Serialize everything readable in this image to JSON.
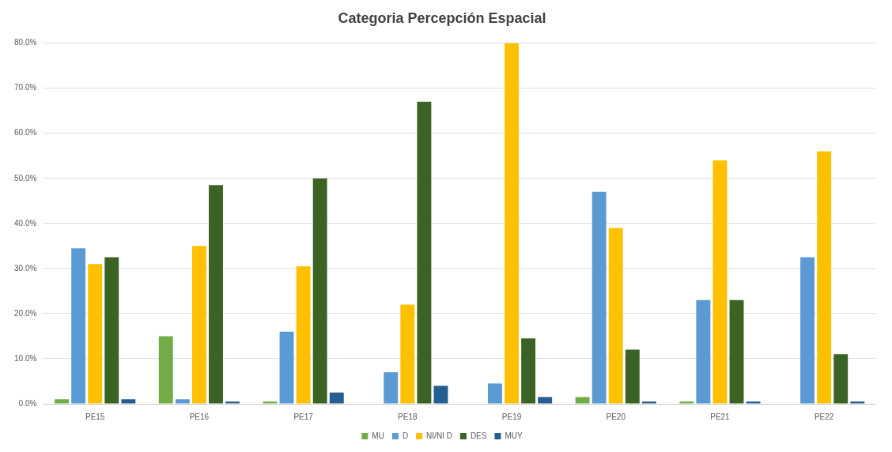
{
  "chart_data": {
    "type": "bar",
    "title": "Categoria Percepción Espacial",
    "categories": [
      "PE15",
      "PE16",
      "PE17",
      "PE18",
      "PE19",
      "PE20",
      "PE21",
      "PE22"
    ],
    "series": [
      {
        "name": "MU",
        "color": "#70ad47",
        "values": [
          1,
          15,
          0.5,
          0,
          0,
          1.5,
          0.5,
          0
        ]
      },
      {
        "name": "D",
        "color": "#5b9bd5",
        "values": [
          34.5,
          1,
          16,
          7,
          4.5,
          47,
          23,
          32.5
        ]
      },
      {
        "name": "NI/NI D",
        "color": "#ffc000",
        "values": [
          31,
          35,
          30.5,
          22,
          80,
          39,
          54,
          56
        ]
      },
      {
        "name": "DES",
        "color": "#3b6324",
        "values": [
          32.5,
          48.5,
          50,
          67,
          14.5,
          12,
          23,
          11
        ]
      },
      {
        "name": "MUY",
        "color": "#255e91",
        "values": [
          1,
          0.5,
          2.5,
          4,
          1.5,
          0.5,
          0.5,
          0.5
        ]
      }
    ],
    "ylim": [
      0,
      80
    ],
    "yticks": [
      {
        "value": 0,
        "label": "0.0%"
      },
      {
        "value": 10,
        "label": "10.0%"
      },
      {
        "value": 20,
        "label": "20.0%"
      },
      {
        "value": 30,
        "label": "30.0%"
      },
      {
        "value": 40,
        "label": "40.0%"
      },
      {
        "value": 50,
        "label": "50.0%"
      },
      {
        "value": 60,
        "label": "60.0%"
      },
      {
        "value": 70,
        "label": "70.0%"
      },
      {
        "value": 80,
        "label": "80.0%"
      }
    ],
    "grid": "y",
    "legend": "bottom"
  }
}
